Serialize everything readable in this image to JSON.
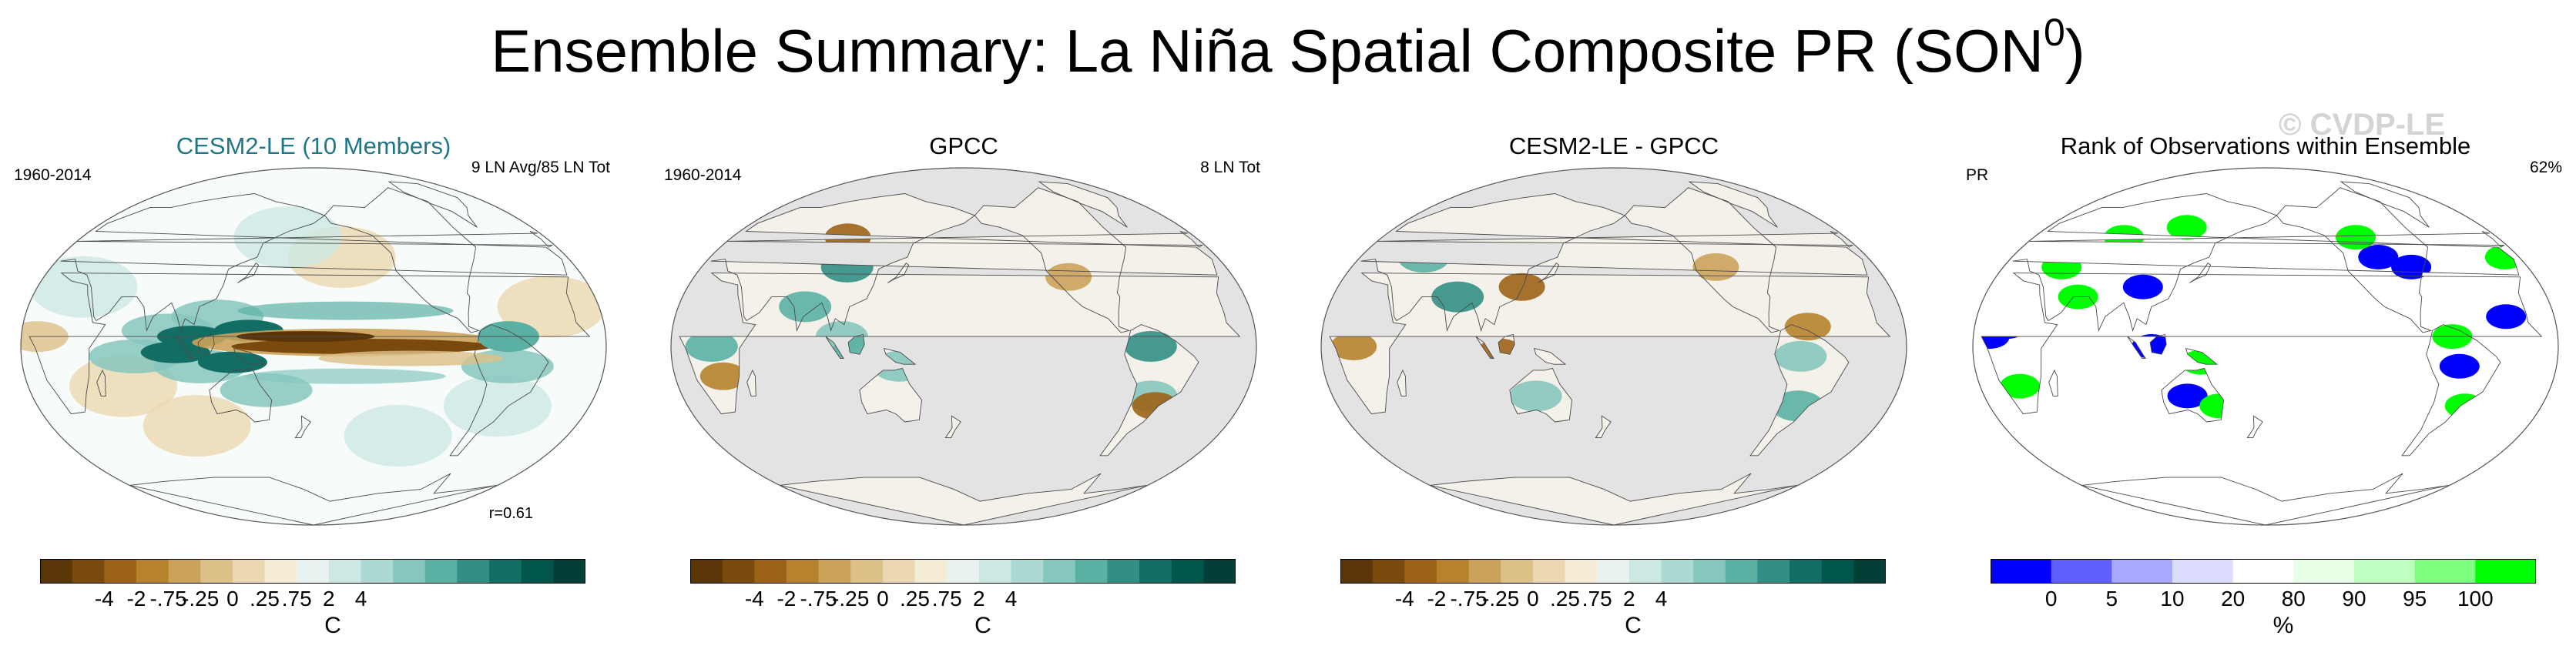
{
  "title": {
    "main": "Ensemble Summary: La Niña Spatial Composite PR (SON",
    "sup": "0",
    "end": ")"
  },
  "watermark": "© CVDP-LE",
  "colors": {
    "precip_scale": [
      "#5a3506",
      "#7a4a0c",
      "#9c6318",
      "#b7822e",
      "#cba25a",
      "#dcc088",
      "#ebd8b0",
      "#f5ecd6",
      "#e8f3f1",
      "#cce8e3",
      "#acdad2",
      "#86c7bd",
      "#5bb0a4",
      "#338f85",
      "#126e64",
      "#01574c",
      "#013f37"
    ],
    "rank_scale": [
      "#0000ff",
      "#6060ff",
      "#a8a8ff",
      "#dcdcff",
      "#ffffff",
      "#e6ffe6",
      "#bfffbf",
      "#80ff80",
      "#00ff00"
    ],
    "land_gray": "#e3e3e3",
    "coast": "#4a4a4a"
  },
  "panels": [
    {
      "title": "CESM2-LE (10 Members)",
      "left": "1960-2014",
      "right": "9 LN Avg/85 LN Tot",
      "r": "r=0.61",
      "colorbar": {
        "ticks": [
          "-4",
          "-2",
          "-.75",
          "-.25",
          "0",
          ".25",
          ".75",
          "2",
          "4"
        ],
        "unit": "C"
      }
    },
    {
      "title": "GPCC",
      "left": "1960-2014",
      "right": "8 LN Tot",
      "colorbar": {
        "ticks": [
          "-4",
          "-2",
          "-.75",
          "-.25",
          "0",
          ".25",
          ".75",
          "2",
          "4"
        ],
        "unit": "C"
      }
    },
    {
      "title": "CESM2-LE - GPCC",
      "colorbar": {
        "ticks": [
          "-4",
          "-2",
          "-.75",
          "-.25",
          "0",
          ".25",
          ".75",
          "2",
          "4"
        ],
        "unit": "C"
      }
    },
    {
      "title": "Rank of Observations within Ensemble",
      "left": "PR",
      "right": "62%",
      "colorbar": {
        "ticks": [
          "0",
          "5",
          "10",
          "20",
          "80",
          "90",
          "95",
          "100"
        ],
        "unit": "%"
      }
    }
  ],
  "chart_data": [
    {
      "type": "heatmap",
      "title": "CESM2-LE (10 Members)",
      "period": "1960-2014",
      "note": "9 LN Avg/85 LN Tot",
      "correlation": 0.61,
      "colorbar_ticks": [
        "-4",
        "-2",
        "-.75",
        "-.25",
        "0",
        ".25",
        ".75",
        "2",
        "4"
      ],
      "units": "C",
      "features": [
        {
          "region": "Equatorial central/eastern Pacific",
          "sign": "negative",
          "approx_value": -4
        },
        {
          "region": "Maritime Continent / western Pacific",
          "sign": "positive",
          "approx_value": 4
        },
        {
          "region": "Indian Ocean",
          "sign": "positive",
          "approx_value": 2
        }
      ]
    },
    {
      "type": "heatmap",
      "title": "GPCC",
      "period": "1960-2014",
      "note": "8 LN Tot",
      "colorbar_ticks": [
        "-4",
        "-2",
        "-.75",
        "-.25",
        "0",
        ".25",
        ".75",
        "2",
        "4"
      ],
      "units": "C",
      "features": [
        {
          "region": "Maritime Continent",
          "sign": "positive",
          "approx_value": 2
        },
        {
          "region": "Northern South America",
          "sign": "positive",
          "approx_value": 0.75
        },
        {
          "region": "Southeastern South America",
          "sign": "negative",
          "approx_value": -2
        }
      ]
    },
    {
      "type": "heatmap",
      "title": "CESM2-LE - GPCC",
      "colorbar_ticks": [
        "-4",
        "-2",
        "-.75",
        "-.25",
        "0",
        ".25",
        ".75",
        "2",
        "4"
      ],
      "units": "C",
      "features": [
        {
          "region": "Maritime Continent",
          "sign": "negative",
          "approx_value": -2
        },
        {
          "region": "Northern South America",
          "sign": "positive",
          "approx_value": 0.75
        },
        {
          "region": "Equatorial Africa",
          "sign": "negative",
          "approx_value": -0.75
        }
      ]
    },
    {
      "type": "heatmap",
      "title": "Rank of Observations within Ensemble",
      "variable": "PR",
      "note": "62%",
      "colorbar_ticks": [
        "0",
        "5",
        "10",
        "20",
        "80",
        "90",
        "95",
        "100"
      ],
      "units": "%"
    }
  ]
}
